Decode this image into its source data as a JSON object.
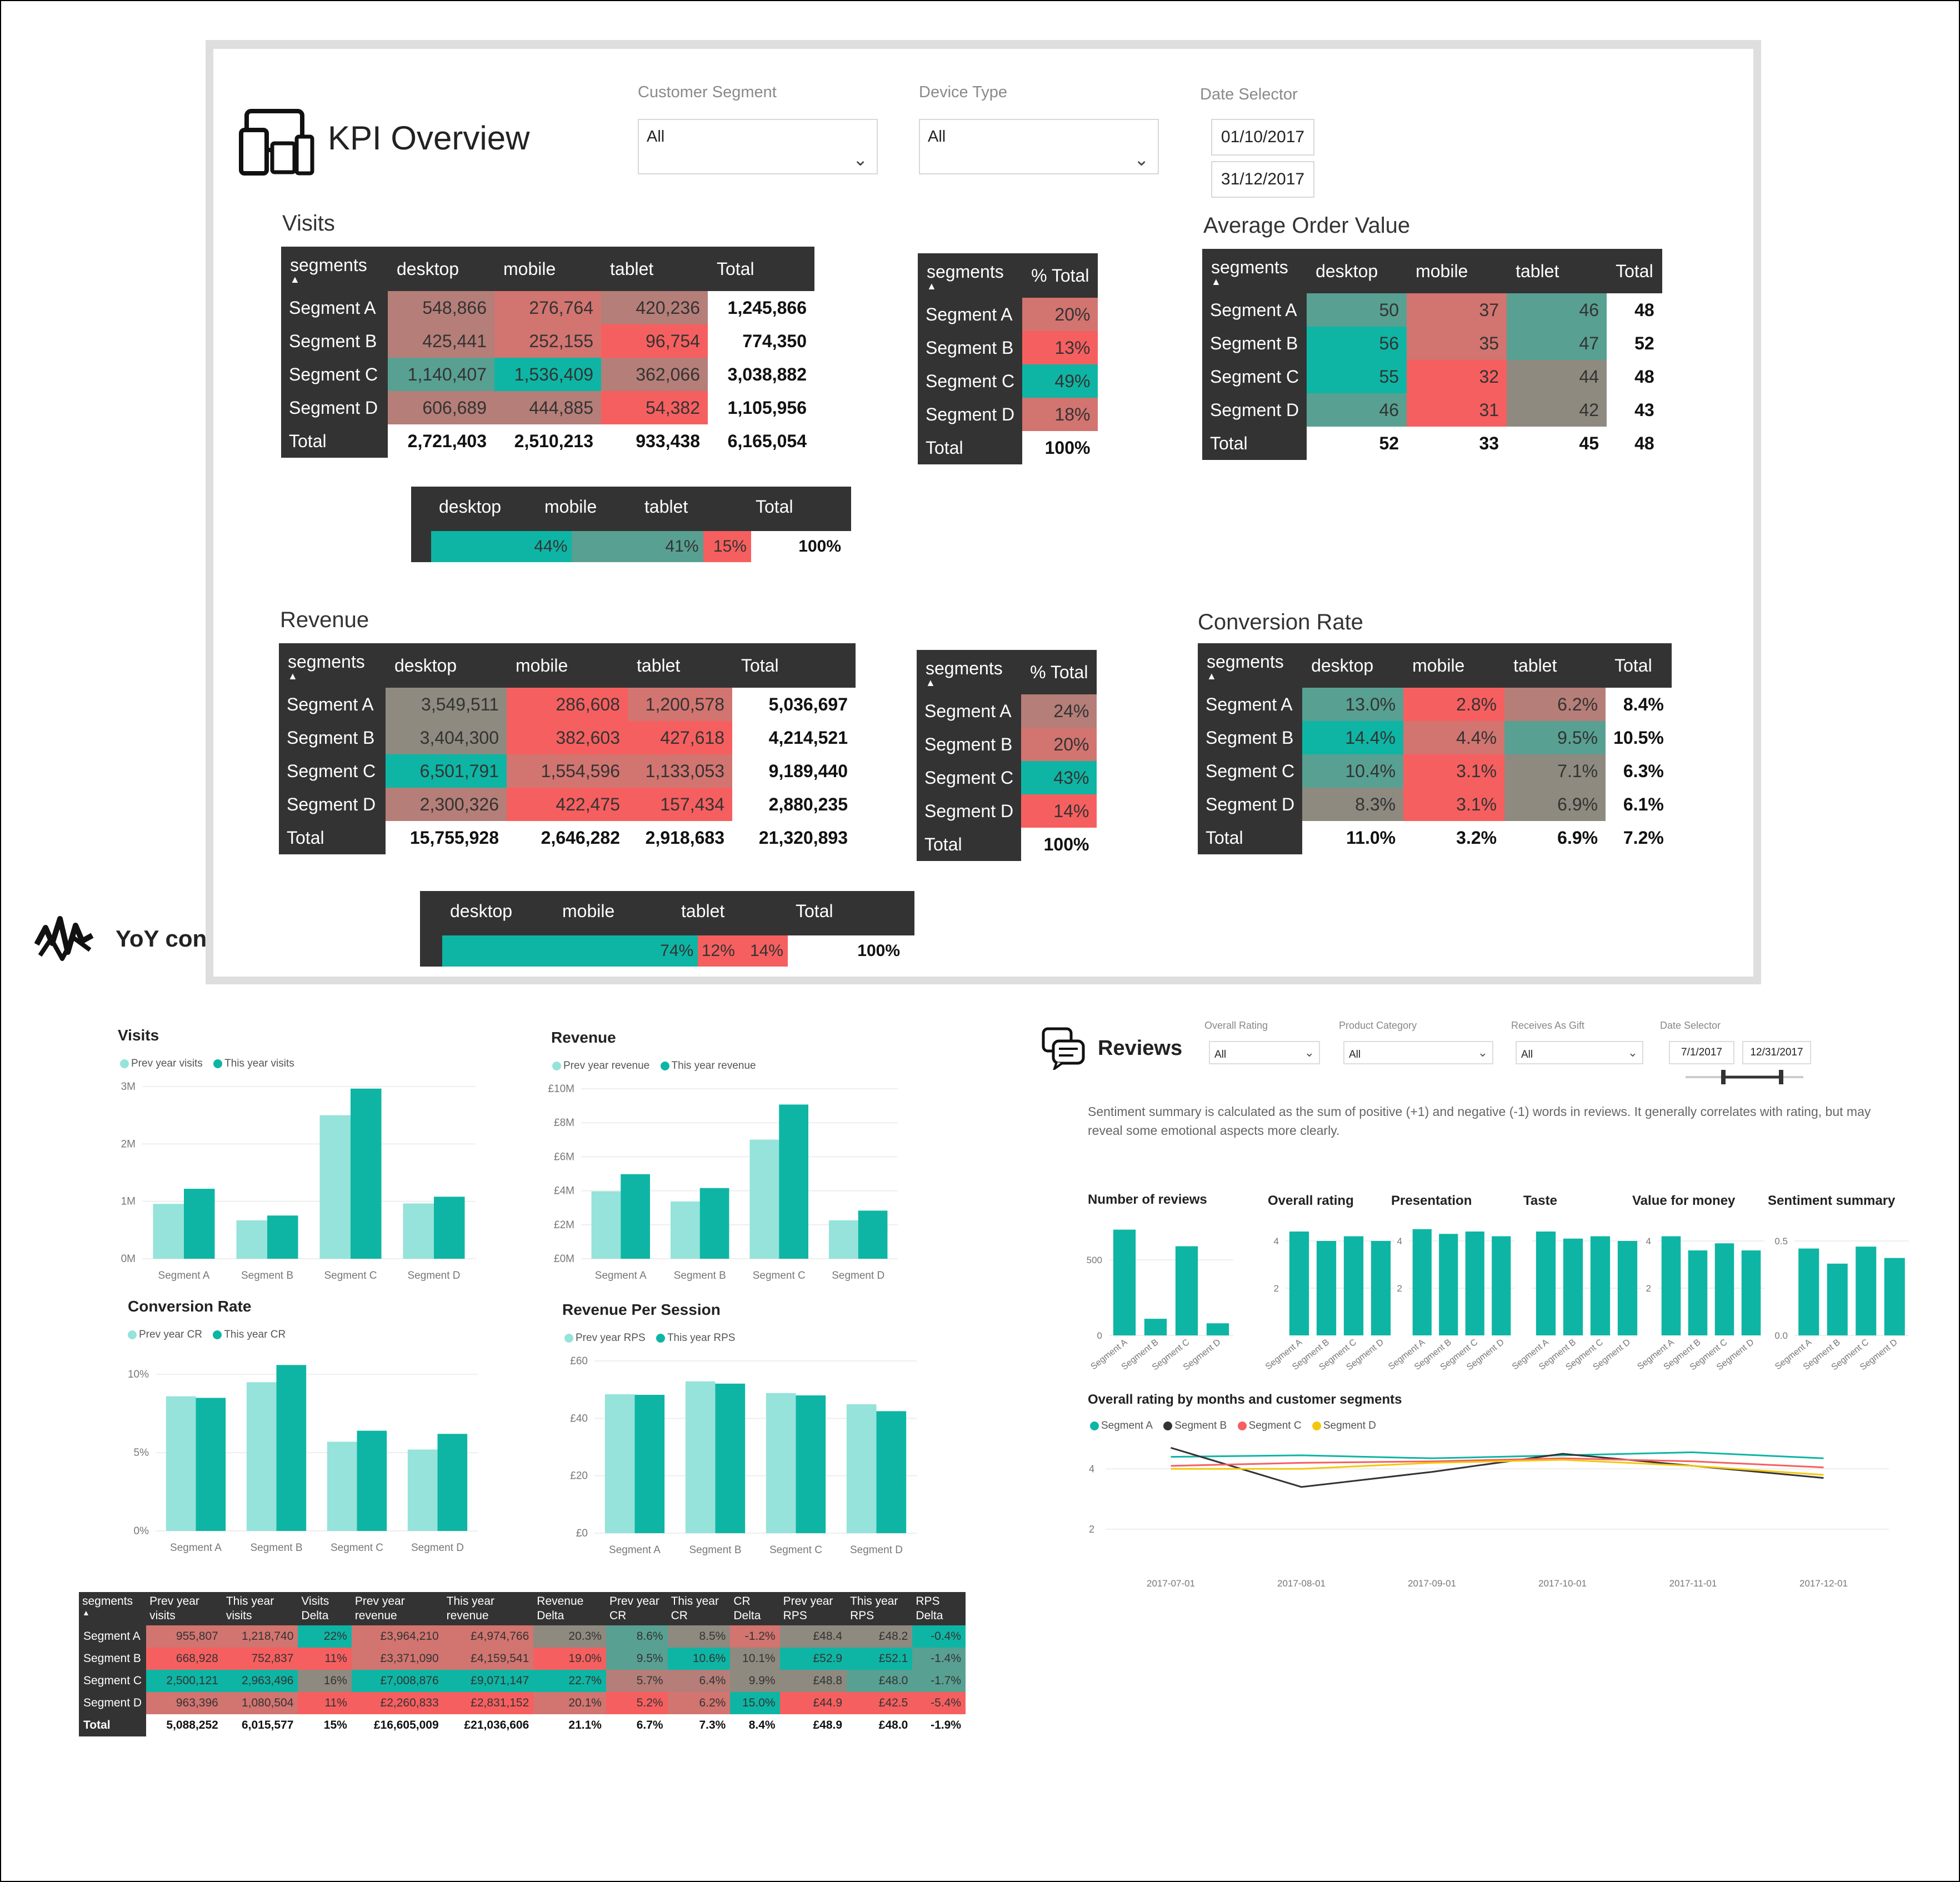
{
  "kpi": {
    "title": "KPI Overview",
    "slicers": {
      "customer_segment": {
        "label": "Customer Segment",
        "value": "All"
      },
      "device_type": {
        "label": "Device Type",
        "value": "All"
      },
      "date_selector": {
        "label": "Date Selector",
        "start": "01/10/2017",
        "end": "31/12/2017"
      }
    },
    "visits": {
      "title": "Visits",
      "columns": [
        "segments",
        "desktop",
        "mobile",
        "tablet",
        "Total"
      ],
      "rows": [
        {
          "label": "Segment A",
          "values": [
            "548,866",
            "276,764",
            "420,236"
          ],
          "total": "1,245,866"
        },
        {
          "label": "Segment B",
          "values": [
            "425,441",
            "252,155",
            "96,754"
          ],
          "total": "774,350"
        },
        {
          "label": "Segment C",
          "values": [
            "1,140,407",
            "1,536,409",
            "362,066"
          ],
          "total": "3,038,882"
        },
        {
          "label": "Segment D",
          "values": [
            "606,689",
            "444,885",
            "54,382"
          ],
          "total": "1,105,956"
        }
      ],
      "total_row": {
        "label": "Total",
        "values": [
          "2,721,403",
          "2,510,213",
          "933,438"
        ],
        "total": "6,165,054"
      }
    },
    "visits_pct": {
      "columns": [
        "segments",
        "% Total"
      ],
      "rows": [
        {
          "label": "Segment A",
          "value": "20%"
        },
        {
          "label": "Segment B",
          "value": "13%"
        },
        {
          "label": "Segment C",
          "value": "49%"
        },
        {
          "label": "Segment D",
          "value": "18%"
        }
      ],
      "total_row": {
        "label": "Total",
        "value": "100%"
      }
    },
    "visits_share": {
      "columns": [
        "desktop",
        "mobile",
        "tablet",
        "Total"
      ],
      "values": [
        "44%",
        "41%",
        "15%",
        "100%"
      ],
      "fractions": [
        0.44,
        0.41,
        0.15
      ]
    },
    "aov": {
      "title": "Average Order Value",
      "columns": [
        "segments",
        "desktop",
        "mobile",
        "tablet",
        "Total"
      ],
      "rows": [
        {
          "label": "Segment A",
          "values": [
            "50",
            "37",
            "46"
          ],
          "total": "48"
        },
        {
          "label": "Segment B",
          "values": [
            "56",
            "35",
            "47"
          ],
          "total": "52"
        },
        {
          "label": "Segment C",
          "values": [
            "55",
            "32",
            "44"
          ],
          "total": "48"
        },
        {
          "label": "Segment D",
          "values": [
            "46",
            "31",
            "42"
          ],
          "total": "43"
        }
      ],
      "total_row": {
        "label": "Total",
        "values": [
          "52",
          "33",
          "45"
        ],
        "total": "48"
      }
    },
    "revenue": {
      "title": "Revenue",
      "columns": [
        "segments",
        "desktop",
        "mobile",
        "tablet",
        "Total"
      ],
      "rows": [
        {
          "label": "Segment A",
          "values": [
            "3,549,511",
            "286,608",
            "1,200,578"
          ],
          "total": "5,036,697"
        },
        {
          "label": "Segment B",
          "values": [
            "3,404,300",
            "382,603",
            "427,618"
          ],
          "total": "4,214,521"
        },
        {
          "label": "Segment C",
          "values": [
            "6,501,791",
            "1,554,596",
            "1,133,053"
          ],
          "total": "9,189,440"
        },
        {
          "label": "Segment D",
          "values": [
            "2,300,326",
            "422,475",
            "157,434"
          ],
          "total": "2,880,235"
        }
      ],
      "total_row": {
        "label": "Total",
        "values": [
          "15,755,928",
          "2,646,282",
          "2,918,683"
        ],
        "total": "21,320,893"
      }
    },
    "revenue_pct": {
      "columns": [
        "segments",
        "% Total"
      ],
      "rows": [
        {
          "label": "Segment A",
          "value": "24%"
        },
        {
          "label": "Segment B",
          "value": "20%"
        },
        {
          "label": "Segment C",
          "value": "43%"
        },
        {
          "label": "Segment D",
          "value": "14%"
        }
      ],
      "total_row": {
        "label": "Total",
        "value": "100%"
      }
    },
    "revenue_share": {
      "columns": [
        "desktop",
        "mobile",
        "tablet",
        "Total"
      ],
      "values": [
        "74%",
        "12%",
        "14%",
        "100%"
      ],
      "fractions": [
        0.74,
        0.12,
        0.14
      ]
    },
    "conversion": {
      "title": "Conversion Rate",
      "columns": [
        "segments",
        "desktop",
        "mobile",
        "tablet",
        "Total"
      ],
      "rows": [
        {
          "label": "Segment A",
          "values": [
            "13.0%",
            "2.8%",
            "6.2%"
          ],
          "total": "8.4%"
        },
        {
          "label": "Segment B",
          "values": [
            "14.4%",
            "4.4%",
            "9.5%"
          ],
          "total": "10.5%"
        },
        {
          "label": "Segment C",
          "values": [
            "10.4%",
            "3.1%",
            "7.1%"
          ],
          "total": "6.3%"
        },
        {
          "label": "Segment D",
          "values": [
            "8.3%",
            "3.1%",
            "6.9%"
          ],
          "total": "6.1%"
        }
      ],
      "total_row": {
        "label": "Total",
        "values": [
          "11.0%",
          "3.2%",
          "6.9%"
        ],
        "total": "7.2%"
      }
    }
  },
  "yoy": {
    "title": "YoY con",
    "table": {
      "columns": [
        "segments",
        "Prev year visits",
        "This year visits",
        "Visits Delta",
        "Prev year revenue",
        "This year revenue",
        "Revenue Delta",
        "Prev year CR",
        "This year CR",
        "CR Delta",
        "Prev year RPS",
        "This year RPS",
        "RPS Delta"
      ],
      "rows": [
        {
          "label": "Segment A",
          "values": [
            "955,807",
            "1,218,740",
            "22%",
            "£3,964,210",
            "£4,974,766",
            "20.3%",
            "8.6%",
            "8.5%",
            "-1.2%",
            "£48.4",
            "£48.2",
            "-0.4%"
          ]
        },
        {
          "label": "Segment B",
          "values": [
            "668,928",
            "752,837",
            "11%",
            "£3,371,090",
            "£4,159,541",
            "19.0%",
            "9.5%",
            "10.6%",
            "10.1%",
            "£52.9",
            "£52.1",
            "-1.4%"
          ]
        },
        {
          "label": "Segment C",
          "values": [
            "2,500,121",
            "2,963,496",
            "16%",
            "£7,008,876",
            "£9,071,147",
            "22.7%",
            "5.7%",
            "6.4%",
            "9.9%",
            "£48.8",
            "£48.0",
            "-1.7%"
          ]
        },
        {
          "label": "Segment D",
          "values": [
            "963,396",
            "1,080,504",
            "11%",
            "£2,260,833",
            "£2,831,152",
            "20.1%",
            "5.2%",
            "6.2%",
            "15.0%",
            "£44.9",
            "£42.5",
            "-5.4%"
          ]
        }
      ],
      "total_row": {
        "label": "Total",
        "values": [
          "5,088,252",
          "6,015,577",
          "15%",
          "£16,605,009",
          "£21,036,606",
          "21.1%",
          "6.7%",
          "7.3%",
          "8.4%",
          "£48.9",
          "£48.0",
          "-1.9%"
        ]
      }
    }
  },
  "reviews": {
    "title": "Reviews",
    "slicers": {
      "overall_rating": {
        "label": "Overall Rating",
        "value": "All"
      },
      "product_category": {
        "label": "Product Category",
        "value": "All"
      },
      "receives_as_gift": {
        "label": "Receives As Gift",
        "value": "All"
      },
      "date_selector": {
        "label": "Date Selector",
        "start": "7/1/2017",
        "end": "12/31/2017"
      }
    },
    "note": "Sentiment summary is calculated as the sum of positive (+1)  and negative (-1) words in reviews. It generally correlates with rating, but may reveal some emotional aspects more clearly."
  },
  "colors": {
    "teal": "#0eb5a4",
    "light_teal": "#95e3da",
    "red": "#f65f5f",
    "dark": "#333333",
    "yellow": "#f2c80f"
  },
  "chart_data": [
    {
      "type": "bar",
      "title": "Visits",
      "categories": [
        "Segment A",
        "Segment B",
        "Segment C",
        "Segment D"
      ],
      "series": [
        {
          "name": "Prev year visits",
          "values": [
            955807,
            668928,
            2500121,
            963396
          ]
        },
        {
          "name": "This year visits",
          "values": [
            1218740,
            752837,
            2963496,
            1080504
          ]
        }
      ],
      "ylim": [
        0,
        3000000
      ],
      "yticks": [
        "0M",
        "1M",
        "2M",
        "3M"
      ]
    },
    {
      "type": "bar",
      "title": "Revenue",
      "categories": [
        "Segment A",
        "Segment B",
        "Segment C",
        "Segment D"
      ],
      "series": [
        {
          "name": "Prev year revenue",
          "values": [
            3964210,
            3371090,
            7008876,
            2260833
          ]
        },
        {
          "name": "This year revenue",
          "values": [
            4974766,
            4159541,
            9071147,
            2831152
          ]
        }
      ],
      "ylim": [
        0,
        10000000
      ],
      "yticks": [
        "£0M",
        "£2M",
        "£4M",
        "£6M",
        "£8M",
        "£10M"
      ]
    },
    {
      "type": "bar",
      "title": "Conversion Rate",
      "categories": [
        "Segment A",
        "Segment B",
        "Segment C",
        "Segment D"
      ],
      "series": [
        {
          "name": "Prev year CR",
          "values": [
            8.6,
            9.5,
            5.7,
            5.2
          ]
        },
        {
          "name": "This year CR",
          "values": [
            8.5,
            10.6,
            6.4,
            6.2
          ]
        }
      ],
      "ylim": [
        0,
        11
      ],
      "yticks": [
        "0%",
        "5%",
        "10%"
      ]
    },
    {
      "type": "bar",
      "title": "Revenue Per Session",
      "categories": [
        "Segment A",
        "Segment B",
        "Segment C",
        "Segment D"
      ],
      "series": [
        {
          "name": "Prev year RPS",
          "values": [
            48.4,
            52.9,
            48.8,
            44.9
          ]
        },
        {
          "name": "This year RPS",
          "values": [
            48.2,
            52.1,
            48.0,
            42.5
          ]
        }
      ],
      "ylim": [
        0,
        60
      ],
      "yticks": [
        "£0",
        "£20",
        "£40",
        "£60"
      ]
    },
    {
      "type": "bar",
      "title": "Number of reviews",
      "categories": [
        "Segment A",
        "Segment B",
        "Segment C",
        "Segment D"
      ],
      "series": [
        {
          "values": [
            700,
            110,
            590,
            80
          ]
        }
      ],
      "ylim": [
        0,
        750
      ],
      "yticks": [
        "0",
        "500"
      ]
    },
    {
      "type": "bar",
      "title": "Overall rating",
      "categories": [
        "Segment A",
        "Segment B",
        "Segment C",
        "Segment D"
      ],
      "series": [
        {
          "values": [
            4.4,
            4.0,
            4.2,
            4.0
          ]
        }
      ],
      "ylim": [
        0,
        4.8
      ],
      "yticks": [
        "2",
        "4"
      ]
    },
    {
      "type": "bar",
      "title": "Presentation",
      "categories": [
        "Segment A",
        "Segment B",
        "Segment C",
        "Segment D"
      ],
      "series": [
        {
          "values": [
            4.5,
            4.3,
            4.4,
            4.2
          ]
        }
      ],
      "ylim": [
        0,
        4.8
      ],
      "yticks": [
        "2",
        "4"
      ]
    },
    {
      "type": "bar",
      "title": "Taste",
      "categories": [
        "Segment A",
        "Segment B",
        "Segment C",
        "Segment D"
      ],
      "series": [
        {
          "values": [
            4.4,
            4.1,
            4.2,
            4.0
          ]
        }
      ],
      "ylim": [
        0,
        4.8
      ],
      "yticks": [
        "2",
        "4"
      ]
    },
    {
      "type": "bar",
      "title": "Value for money",
      "categories": [
        "Segment A",
        "Segment B",
        "Segment C",
        "Segment D"
      ],
      "series": [
        {
          "values": [
            4.2,
            3.6,
            3.9,
            3.6
          ]
        }
      ],
      "ylim": [
        0,
        4.8
      ],
      "yticks": [
        "2",
        "4"
      ]
    },
    {
      "type": "bar",
      "title": "Sentiment summary",
      "categories": [
        "Segment A",
        "Segment B",
        "Segment C",
        "Segment D"
      ],
      "series": [
        {
          "values": [
            0.46,
            0.38,
            0.47,
            0.41
          ]
        }
      ],
      "ylim": [
        0,
        0.6
      ],
      "yticks": [
        "0.0",
        "0.5"
      ]
    },
    {
      "type": "line",
      "title": "Overall rating by months and customer segments",
      "x": [
        "2017-07-01",
        "2017-08-01",
        "2017-09-01",
        "2017-10-01",
        "2017-11-01",
        "2017-12-01"
      ],
      "series": [
        {
          "name": "Segment A",
          "values": [
            4.4,
            4.45,
            4.35,
            4.45,
            4.55,
            4.35
          ]
        },
        {
          "name": "Segment B",
          "values": [
            4.7,
            3.4,
            3.9,
            4.5,
            4.1,
            3.7
          ]
        },
        {
          "name": "Segment C",
          "values": [
            4.1,
            4.2,
            4.25,
            4.35,
            4.25,
            4.05
          ]
        },
        {
          "name": "Segment D",
          "values": [
            4.0,
            4.0,
            4.2,
            4.3,
            4.1,
            3.8
          ]
        }
      ],
      "ylim": [
        1.5,
        5.0
      ],
      "yticks": [
        "2",
        "4"
      ]
    }
  ]
}
